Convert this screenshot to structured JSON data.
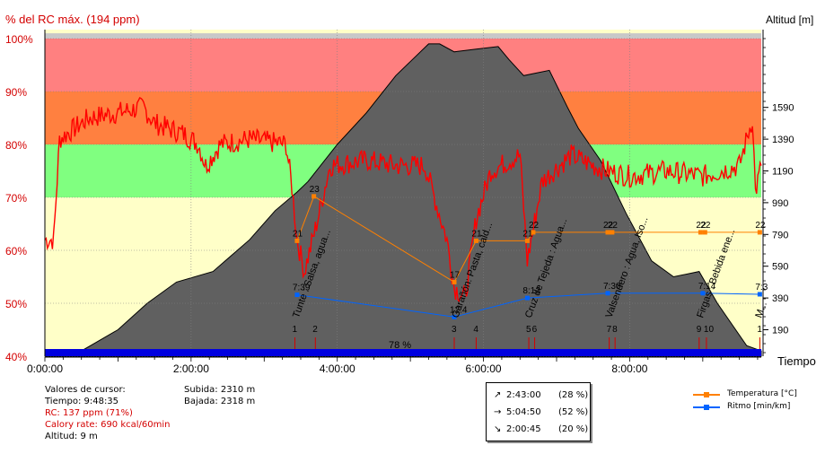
{
  "chart_data": {
    "type": "line",
    "title": "",
    "left_axis_title": "% del RC máx. (194 ppm)",
    "right_axis_title": "Altitud [m]",
    "x_axis_title": "Tiempo",
    "x_range_hours": [
      0,
      9.8
    ],
    "x_ticks": [
      {
        "h": 0,
        "label": "0:00:00"
      },
      {
        "h": 2,
        "label": "2:00:00"
      },
      {
        "h": 4,
        "label": "4:00:00"
      },
      {
        "h": 6,
        "label": "6:00:00"
      },
      {
        "h": 8,
        "label": "8:00:00"
      }
    ],
    "y_left_range": [
      40,
      100
    ],
    "y_left_ticks": [
      "40%",
      "50%",
      "60%",
      "70%",
      "80%",
      "90%",
      "100%"
    ],
    "y_right_ticks": [
      {
        "pct": 45,
        "label": "190"
      },
      {
        "pct": 51,
        "label": "390"
      },
      {
        "pct": 57,
        "label": "590"
      },
      {
        "pct": 63,
        "label": "790"
      },
      {
        "pct": 69,
        "label": "990"
      },
      {
        "pct": 75,
        "label": "1190"
      },
      {
        "pct": 81,
        "label": "1390"
      },
      {
        "pct": 87,
        "label": "1590"
      }
    ],
    "zones": [
      {
        "from": 100,
        "to": 101,
        "color": "#c8c8c8"
      },
      {
        "from": 90,
        "to": 100,
        "color": "#ff8080"
      },
      {
        "from": 80,
        "to": 90,
        "color": "#ff8040"
      },
      {
        "from": 70,
        "to": 80,
        "color": "#80ff80"
      },
      {
        "from": 60,
        "to": 70,
        "color": "#ffff80"
      }
    ],
    "altitude_profile": [
      [
        0,
        40.6
      ],
      [
        0.5,
        41
      ],
      [
        1,
        45
      ],
      [
        1.4,
        50
      ],
      [
        1.8,
        54
      ],
      [
        2.3,
        56
      ],
      [
        2.8,
        62
      ],
      [
        3.15,
        67.5
      ],
      [
        3.45,
        71
      ],
      [
        3.6,
        73
      ],
      [
        4,
        80
      ],
      [
        4.4,
        86
      ],
      [
        4.8,
        93
      ],
      [
        5.1,
        97
      ],
      [
        5.25,
        99
      ],
      [
        5.4,
        99
      ],
      [
        5.6,
        97.5
      ],
      [
        5.9,
        98
      ],
      [
        6.2,
        98.5
      ],
      [
        6.35,
        96
      ],
      [
        6.55,
        93
      ],
      [
        6.9,
        94
      ],
      [
        7.15,
        87
      ],
      [
        7.3,
        83
      ],
      [
        7.6,
        77
      ],
      [
        7.95,
        67
      ],
      [
        8.3,
        58
      ],
      [
        8.6,
        55
      ],
      [
        8.95,
        56
      ],
      [
        9.2,
        50
      ],
      [
        9.6,
        42
      ],
      [
        9.8,
        41
      ]
    ],
    "heart_rate_profile": [
      [
        0,
        62
      ],
      [
        0.12,
        62
      ],
      [
        0.2,
        81
      ],
      [
        0.6,
        85
      ],
      [
        1,
        86
      ],
      [
        1.35,
        87
      ],
      [
        1.5,
        84
      ],
      [
        1.9,
        82
      ],
      [
        2.1,
        80
      ],
      [
        2.2,
        76
      ],
      [
        2.4,
        80
      ],
      [
        2.8,
        81
      ],
      [
        3.3,
        80
      ],
      [
        3.38,
        72
      ],
      [
        3.45,
        62
      ],
      [
        3.55,
        56
      ],
      [
        3.7,
        64
      ],
      [
        3.9,
        76
      ],
      [
        4.4,
        77
      ],
      [
        4.8,
        76
      ],
      [
        5.2,
        76
      ],
      [
        5.5,
        62
      ],
      [
        5.6,
        53
      ],
      [
        5.75,
        51
      ],
      [
        5.9,
        66
      ],
      [
        6.1,
        75
      ],
      [
        6.5,
        78
      ],
      [
        6.6,
        58
      ],
      [
        6.8,
        73
      ],
      [
        7.2,
        78
      ],
      [
        7.5,
        76
      ],
      [
        7.7,
        75
      ],
      [
        8,
        74
      ],
      [
        8.5,
        75
      ],
      [
        9,
        74
      ],
      [
        9.5,
        76
      ],
      [
        9.68,
        85
      ],
      [
        9.72,
        71
      ],
      [
        9.8,
        76
      ]
    ],
    "series": [
      {
        "name": "Temperatura [°C]",
        "color": "#ff8000",
        "points": [
          {
            "h": 3.45,
            "pct": 61.8,
            "label": "21"
          },
          {
            "h": 3.68,
            "pct": 70.2,
            "label": "23"
          },
          {
            "h": 5.6,
            "pct": 54.0,
            "label": "17"
          },
          {
            "h": 5.9,
            "pct": 61.8,
            "label": "21"
          },
          {
            "h": 6.6,
            "pct": 61.8,
            "label": "21"
          },
          {
            "h": 6.68,
            "pct": 63.4,
            "label": "22"
          },
          {
            "h": 7.7,
            "pct": 63.4,
            "label": "22"
          },
          {
            "h": 7.76,
            "pct": 63.4,
            "label": "22"
          },
          {
            "h": 8.97,
            "pct": 63.4,
            "label": "22"
          },
          {
            "h": 9.03,
            "pct": 63.4,
            "label": "22"
          },
          {
            "h": 9.78,
            "pct": 63.4,
            "label": "22"
          }
        ]
      },
      {
        "name": "Ritmo [min/km]",
        "color": "#0064ff",
        "points": [
          {
            "h": 3.45,
            "pct": 51.6,
            "label": "7:39"
          },
          {
            "h": 5.6,
            "pct": 47.4,
            "label": "12:4"
          },
          {
            "h": 6.6,
            "pct": 51.0,
            "label": "8:12"
          },
          {
            "h": 7.7,
            "pct": 51.9,
            "label": "7:30"
          },
          {
            "h": 9.0,
            "pct": 51.9,
            "label": "7:14"
          },
          {
            "h": 9.78,
            "pct": 51.7,
            "label": "7:3"
          }
        ]
      }
    ],
    "markers": [
      {
        "h": 3.42,
        "label": "1"
      },
      {
        "h": 3.7,
        "label": "2"
      },
      {
        "h": 5.6,
        "label": "3"
      },
      {
        "h": 5.9,
        "label": "4"
      },
      {
        "h": 6.62,
        "label": "5"
      },
      {
        "h": 6.7,
        "label": "6"
      },
      {
        "h": 7.72,
        "label": "7"
      },
      {
        "h": 7.8,
        "label": "8"
      },
      {
        "h": 8.95,
        "label": "9"
      },
      {
        "h": 9.05,
        "label": "10"
      },
      {
        "h": 9.78,
        "label": "1"
      }
    ],
    "waypoints": [
      {
        "h": 3.42,
        "label": "Tunte : Salsa, agua..."
      },
      {
        "h": 5.6,
        "label": "Garañón: Pasta, cald..."
      },
      {
        "h": 6.6,
        "label": "Cruz de Tejeda : Agua..."
      },
      {
        "h": 7.7,
        "label": "Valsendero : Agua, Iso..."
      },
      {
        "h": 8.95,
        "label": "Firgas : Bebida ene..."
      },
      {
        "h": 9.75,
        "label": "M..."
      }
    ],
    "bottom_bar_label": "78 %",
    "bottom_bar_color": "#0000e0",
    "altitude_color": "#606060",
    "heart_rate_color": "#ff0000"
  },
  "cursor_values": {
    "heading": "Valores de cursor:",
    "time": "Tiempo: 9:48:35",
    "hr": "RC: 137 ppm (71%)",
    "calory": "Calory rate: 690 kcal/60min",
    "altitude": "Altitud: 9 m"
  },
  "climb": {
    "up": "Subida: 2310 m",
    "down": "Bajada: 2318 m"
  },
  "slope_box": [
    {
      "icon": "↗",
      "time": "2:43:00",
      "pct": "(28 %)"
    },
    {
      "icon": "→",
      "time": "5:04:50",
      "pct": "(52 %)"
    },
    {
      "icon": "↘",
      "time": "2:00:45",
      "pct": "(20 %)"
    }
  ],
  "legend": [
    {
      "label": "Temperatura [°C]",
      "color": "#ff8000"
    },
    {
      "label": "Ritmo [min/km]",
      "color": "#0064ff"
    }
  ]
}
